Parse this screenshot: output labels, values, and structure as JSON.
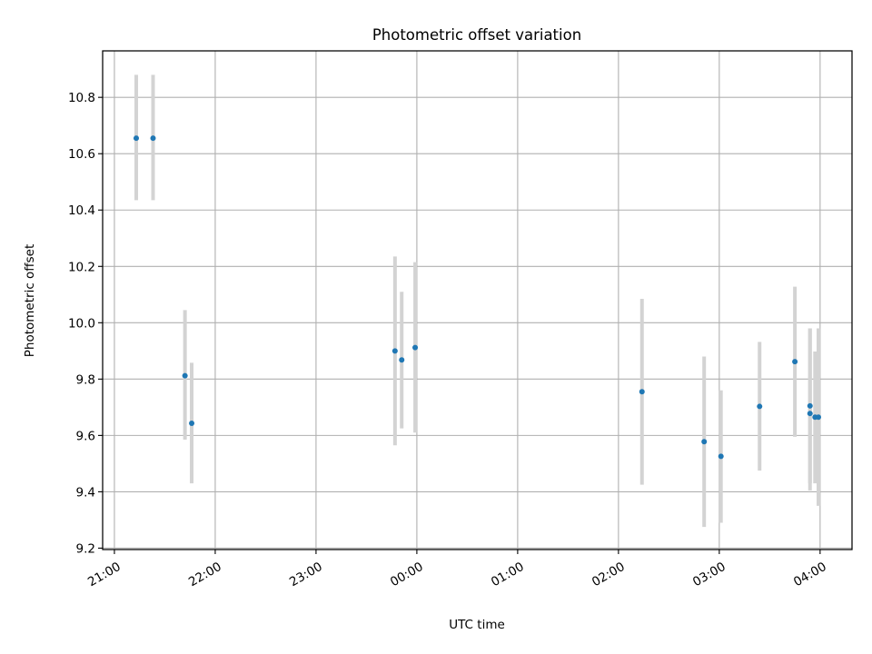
{
  "chart_data": {
    "type": "scatter",
    "title": "Photometric offset variation",
    "xlabel": "UTC time",
    "ylabel": "Photometric offset",
    "x_ticks": [
      "21:00",
      "22:00",
      "23:00",
      "00:00",
      "01:00",
      "02:00",
      "03:00",
      "04:00"
    ],
    "y_ticks": [
      "9.2",
      "9.4",
      "9.6",
      "9.8",
      "10.0",
      "10.2",
      "10.4",
      "10.6",
      "10.8"
    ],
    "xlim": [
      "20:53",
      "04:19"
    ],
    "ylim": [
      9.195,
      10.965
    ],
    "grid": true,
    "colors": {
      "points": "#1f77b4",
      "error_bars": "#d3d3d3",
      "grid": "#b0b0b0"
    },
    "series": [
      {
        "points": [
          {
            "x": "21:13",
            "y": 10.655,
            "ylo": 10.435,
            "yhi": 10.88
          },
          {
            "x": "21:23",
            "y": 10.655,
            "ylo": 10.435,
            "yhi": 10.88
          },
          {
            "x": "21:42",
            "y": 9.812,
            "ylo": 9.585,
            "yhi": 10.045
          },
          {
            "x": "21:46",
            "y": 9.643,
            "ylo": 9.43,
            "yhi": 9.858
          },
          {
            "x": "23:47",
            "y": 9.9,
            "ylo": 9.565,
            "yhi": 10.235
          },
          {
            "x": "23:51",
            "y": 9.868,
            "ylo": 9.625,
            "yhi": 10.11
          },
          {
            "x": "23:59",
            "y": 9.912,
            "ylo": 9.61,
            "yhi": 10.215
          },
          {
            "x": "02:14",
            "y": 9.755,
            "ylo": 9.425,
            "yhi": 10.085
          },
          {
            "x": "02:51",
            "y": 9.578,
            "ylo": 9.275,
            "yhi": 9.88
          },
          {
            "x": "03:01",
            "y": 9.526,
            "ylo": 9.29,
            "yhi": 9.76
          },
          {
            "x": "03:24",
            "y": 9.703,
            "ylo": 9.475,
            "yhi": 9.932
          },
          {
            "x": "03:45",
            "y": 9.862,
            "ylo": 9.595,
            "yhi": 10.128
          },
          {
            "x": "03:54",
            "y": 9.705,
            "ylo": 9.43,
            "yhi": 9.98
          },
          {
            "x": "03:54",
            "y": 9.678,
            "ylo": 9.405,
            "yhi": 9.98
          },
          {
            "x": "03:57",
            "y": 9.665,
            "ylo": 9.43,
            "yhi": 9.898
          },
          {
            "x": "03:59",
            "y": 9.665,
            "ylo": 9.35,
            "yhi": 9.98
          }
        ]
      }
    ]
  }
}
